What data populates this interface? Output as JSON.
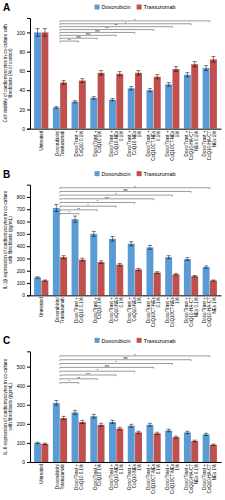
{
  "chart_data": [
    {
      "type": "bar",
      "title": "A",
      "y_label": "Cell viability of cardiomyocytes in co-culture with\nfibroblasts (% of control)",
      "categories": [
        "Untreated",
        "Doxorubicin/\nTrastuzumab",
        "Doxo/Trast +\nCoQ10 0.1%",
        "Doxo/Trast +\nCoQ10 1%",
        "Doxo/Trast +\nCoQ10-NEs\n0.1%",
        "Doxo/Trast +\nCoQ10-NEs\n1%",
        "Doxo/Trast +\nCoQ10CT-NEs\n0.1%",
        "Doxo/Trast +\nCoQ10CT-NEs\n1%",
        "Doxo/Trast +\nCoQ10-HA-CT\nNEs 0.1%",
        "Doxo/Trast +\nCoQ10-HA-CT\nNEs 1%"
      ],
      "series": [
        {
          "name": "Doxorubicin",
          "color": "#5b9bd5",
          "values": [
            100,
            22,
            28,
            32,
            30,
            42,
            40,
            46,
            56,
            63
          ],
          "errors": [
            4,
            0.88,
            1.12,
            1.28,
            1.2,
            1.68,
            1.6,
            1.84,
            2.24,
            2.52
          ]
        },
        {
          "name": "Trastuzumab",
          "color": "#c0504d",
          "values": [
            100,
            48,
            50,
            58,
            57,
            58,
            54,
            62,
            67,
            72
          ],
          "errors": [
            4,
            1.92,
            2,
            2.32,
            2.28,
            2.32,
            2.16,
            2.48,
            2.68,
            2.88
          ]
        }
      ],
      "ylim": [
        0,
        115
      ],
      "yticks": [
        0,
        20,
        40,
        60,
        80,
        100
      ],
      "legend": "top",
      "annotations": [
        {
          "label": "*",
          "x1": "Doxorubicin/\nTrastuzumab",
          "x2": "Doxo/Trast +\nCoQ10-HA-CT\nNEs 1%",
          "y": 112
        },
        {
          "label": "*",
          "x1": "Doxorubicin/\nTrastuzumab",
          "x2": "Doxo/Trast +\nCoQ10-HA-CT\nNEs 0.1%",
          "y": 109
        },
        {
          "label": "**",
          "x1": "Doxorubicin/\nTrastuzumab",
          "x2": "Doxo/Trast +\nCoQ10CT-NEs\n1%",
          "y": 106
        },
        {
          "label": "**",
          "x1": "Doxorubicin/\nTrastuzumab",
          "x2": "Doxo/Trast +\nCoQ10CT-NEs\n0.1%",
          "y": 103
        },
        {
          "label": "ns",
          "x1": "Doxorubicin/\nTrastuzumab",
          "x2": "Doxo/Trast +\nCoQ10-NEs\n1%",
          "y": 100
        },
        {
          "label": "ns",
          "x1": "Doxorubicin/\nTrastuzumab",
          "x2": "Doxo/Trast +\nCoQ10-NEs\n0.1%",
          "y": 97
        },
        {
          "label": "ns",
          "x1": "Doxorubicin/\nTrastuzumab",
          "x2": "Doxo/Trast +\nCoQ10 1%",
          "y": 94
        },
        {
          "label": "**",
          "x1": "Doxorubicin/\nTrastuzumab",
          "x2": "Doxo/Trast +\nCoQ10 0.1%",
          "y": 91
        }
      ]
    },
    {
      "type": "bar",
      "title": "B",
      "y_label": "IL-1β expression of  cardiomyocytes in co-culture\nwith fibroblasts (pg/mL)",
      "categories": [
        "Untreated",
        "Doxorubicin/\nTrastuzumab",
        "Doxo/Trast +\nCoQ10 0.1%",
        "Doxo/Trast +\nCoQ10 1%",
        "Doxo/Trast +\nCoQ10-NEs\n0.1%",
        "Doxo/Trast +\nCoQ10-NEs\n1%",
        "Doxo/Trast +\nCoQ10CT-NEs\n0.1%",
        "Doxo/Trast +\nCoQ10CT-NEs\n1%",
        "Doxo/Trast +\nCoQ10-HA-CT\nNEs 0.1%",
        "Doxo/Trast +\nCoQ10-HA-CT\nNEs 1%"
      ],
      "series": [
        {
          "name": "Doxorubicin",
          "color": "#5b9bd5",
          "values": [
            145,
            710,
            620,
            500,
            460,
            420,
            390,
            310,
            295,
            230
          ],
          "errors": [
            5.8,
            28.4,
            24.8,
            20,
            18.4,
            16.8,
            15.6,
            12.4,
            11.8,
            9.2
          ]
        },
        {
          "name": "Trastuzumab",
          "color": "#c0504d",
          "values": [
            120,
            310,
            290,
            270,
            250,
            210,
            185,
            170,
            155,
            120
          ],
          "errors": [
            4.8,
            12.4,
            11.6,
            10.8,
            10,
            8.4,
            7.4,
            6.8,
            6.2,
            4.8
          ]
        }
      ],
      "ylim": [
        0,
        900
      ],
      "yticks": [
        0,
        100,
        200,
        300,
        400,
        500,
        600,
        700,
        800
      ],
      "legend": "top",
      "annotations": [
        {
          "label": "*",
          "x1": "Doxorubicin/\nTrastuzumab",
          "x2": "Doxo/Trast +\nCoQ10-HA-CT\nNEs 1%",
          "y": 875
        },
        {
          "label": "ns",
          "x1": "Doxorubicin/\nTrastuzumab",
          "x2": "Doxo/Trast +\nCoQ10-HA-CT\nNEs 0.1%",
          "y": 845
        },
        {
          "label": "*",
          "x1": "Doxorubicin/\nTrastuzumab",
          "x2": "Doxo/Trast +\nCoQ10CT-NEs\n1%",
          "y": 815
        },
        {
          "label": "***",
          "x1": "Doxorubicin/\nTrastuzumab",
          "x2": "Doxo/Trast +\nCoQ10CT-NEs\n0.1%",
          "y": 785
        },
        {
          "label": "*",
          "x1": "Doxorubicin/\nTrastuzumab",
          "x2": "Doxo/Trast +\nCoQ10-NEs\n1%",
          "y": 755
        },
        {
          "label": "*",
          "x1": "Doxorubicin/\nTrastuzumab",
          "x2": "Doxo/Trast +\nCoQ10-NEs\n0.1%",
          "y": 725
        },
        {
          "label": "**",
          "x1": "Doxorubicin/\nTrastuzumab",
          "x2": "Doxo/Trast +\nCoQ10 1%",
          "y": 695
        },
        {
          "label": "*",
          "x1": "Doxorubicin/\nTrastuzumab",
          "x2": "Doxo/Trast +\nCoQ10 0.1%",
          "y": 665
        }
      ]
    },
    {
      "type": "bar",
      "title": "C",
      "y_label": "IL-6 expression of  cardiomyocytes in co-culture\nwith fibroblasts (pg/mL)",
      "categories": [
        "Untreated",
        "Doxorubicin/\nTrastuzumab",
        "Doxo/Trast +\nCoQ10 0.1%",
        "Doxo/Trast +\nCoQ10 1%",
        "Doxo/Trast +\nCoQ10-NEs\n0.1%",
        "Doxo/Trast +\nCoQ10-NEs\n1%",
        "Doxo/Trast +\nCoQ10CT-NEs\n0.1%",
        "Doxo/Trast +\nCoQ10CT-NEs\n1%",
        "Doxo/Trast +\nCoQ10-HA-CT\nNEs 0.1%",
        "Doxo/Trast +\nCoQ10-HA-CT\nNEs 1%"
      ],
      "series": [
        {
          "name": "Doxorubicin",
          "color": "#5b9bd5",
          "values": [
            100,
            310,
            260,
            240,
            210,
            190,
            195,
            165,
            155,
            145
          ],
          "errors": [
            4,
            12.4,
            10.4,
            9.6,
            8.4,
            7.6,
            7.8,
            6.6,
            6.2,
            5.8
          ]
        },
        {
          "name": "Trastuzumab",
          "color": "#c0504d",
          "values": [
            95,
            230,
            210,
            195,
            175,
            155,
            150,
            130,
            110,
            90
          ],
          "errors": [
            3.8,
            9.2,
            8.4,
            7.8,
            7,
            6.2,
            6,
            5.2,
            4.4,
            3.6
          ]
        }
      ],
      "ylim": [
        0,
        580
      ],
      "yticks": [
        0,
        100,
        200,
        300,
        400,
        500
      ],
      "legend": "top",
      "annotations": [
        {
          "label": "*",
          "x1": "Doxorubicin/\nTrastuzumab",
          "x2": "Doxo/Trast +\nCoQ10-HA-CT\nNEs 1%",
          "y": 556
        },
        {
          "label": "ns",
          "x1": "Doxorubicin/\nTrastuzumab",
          "x2": "Doxo/Trast +\nCoQ10-HA-CT\nNEs 0.1%",
          "y": 536
        },
        {
          "label": "*",
          "x1": "Doxorubicin/\nTrastuzumab",
          "x2": "Doxo/Trast +\nCoQ10CT-NEs\n1%",
          "y": 516
        },
        {
          "label": "ns",
          "x1": "Doxorubicin/\nTrastuzumab",
          "x2": "Doxo/Trast +\nCoQ10CT-NEs\n0.1%",
          "y": 496
        },
        {
          "label": "*",
          "x1": "Doxorubicin/\nTrastuzumab",
          "x2": "Doxo/Trast +\nCoQ10-NEs\n1%",
          "y": 476
        },
        {
          "label": "***",
          "x1": "Doxorubicin/\nTrastuzumab",
          "x2": "Doxo/Trast +\nCoQ10-NEs\n0.1%",
          "y": 456
        },
        {
          "label": "**",
          "x1": "Doxorubicin/\nTrastuzumab",
          "x2": "Doxo/Trast +\nCoQ10 1%",
          "y": 436
        },
        {
          "label": "*",
          "x1": "Doxorubicin/\nTrastuzumab",
          "x2": "Doxo/Trast +\nCoQ10 0.1%",
          "y": 416
        }
      ]
    }
  ]
}
